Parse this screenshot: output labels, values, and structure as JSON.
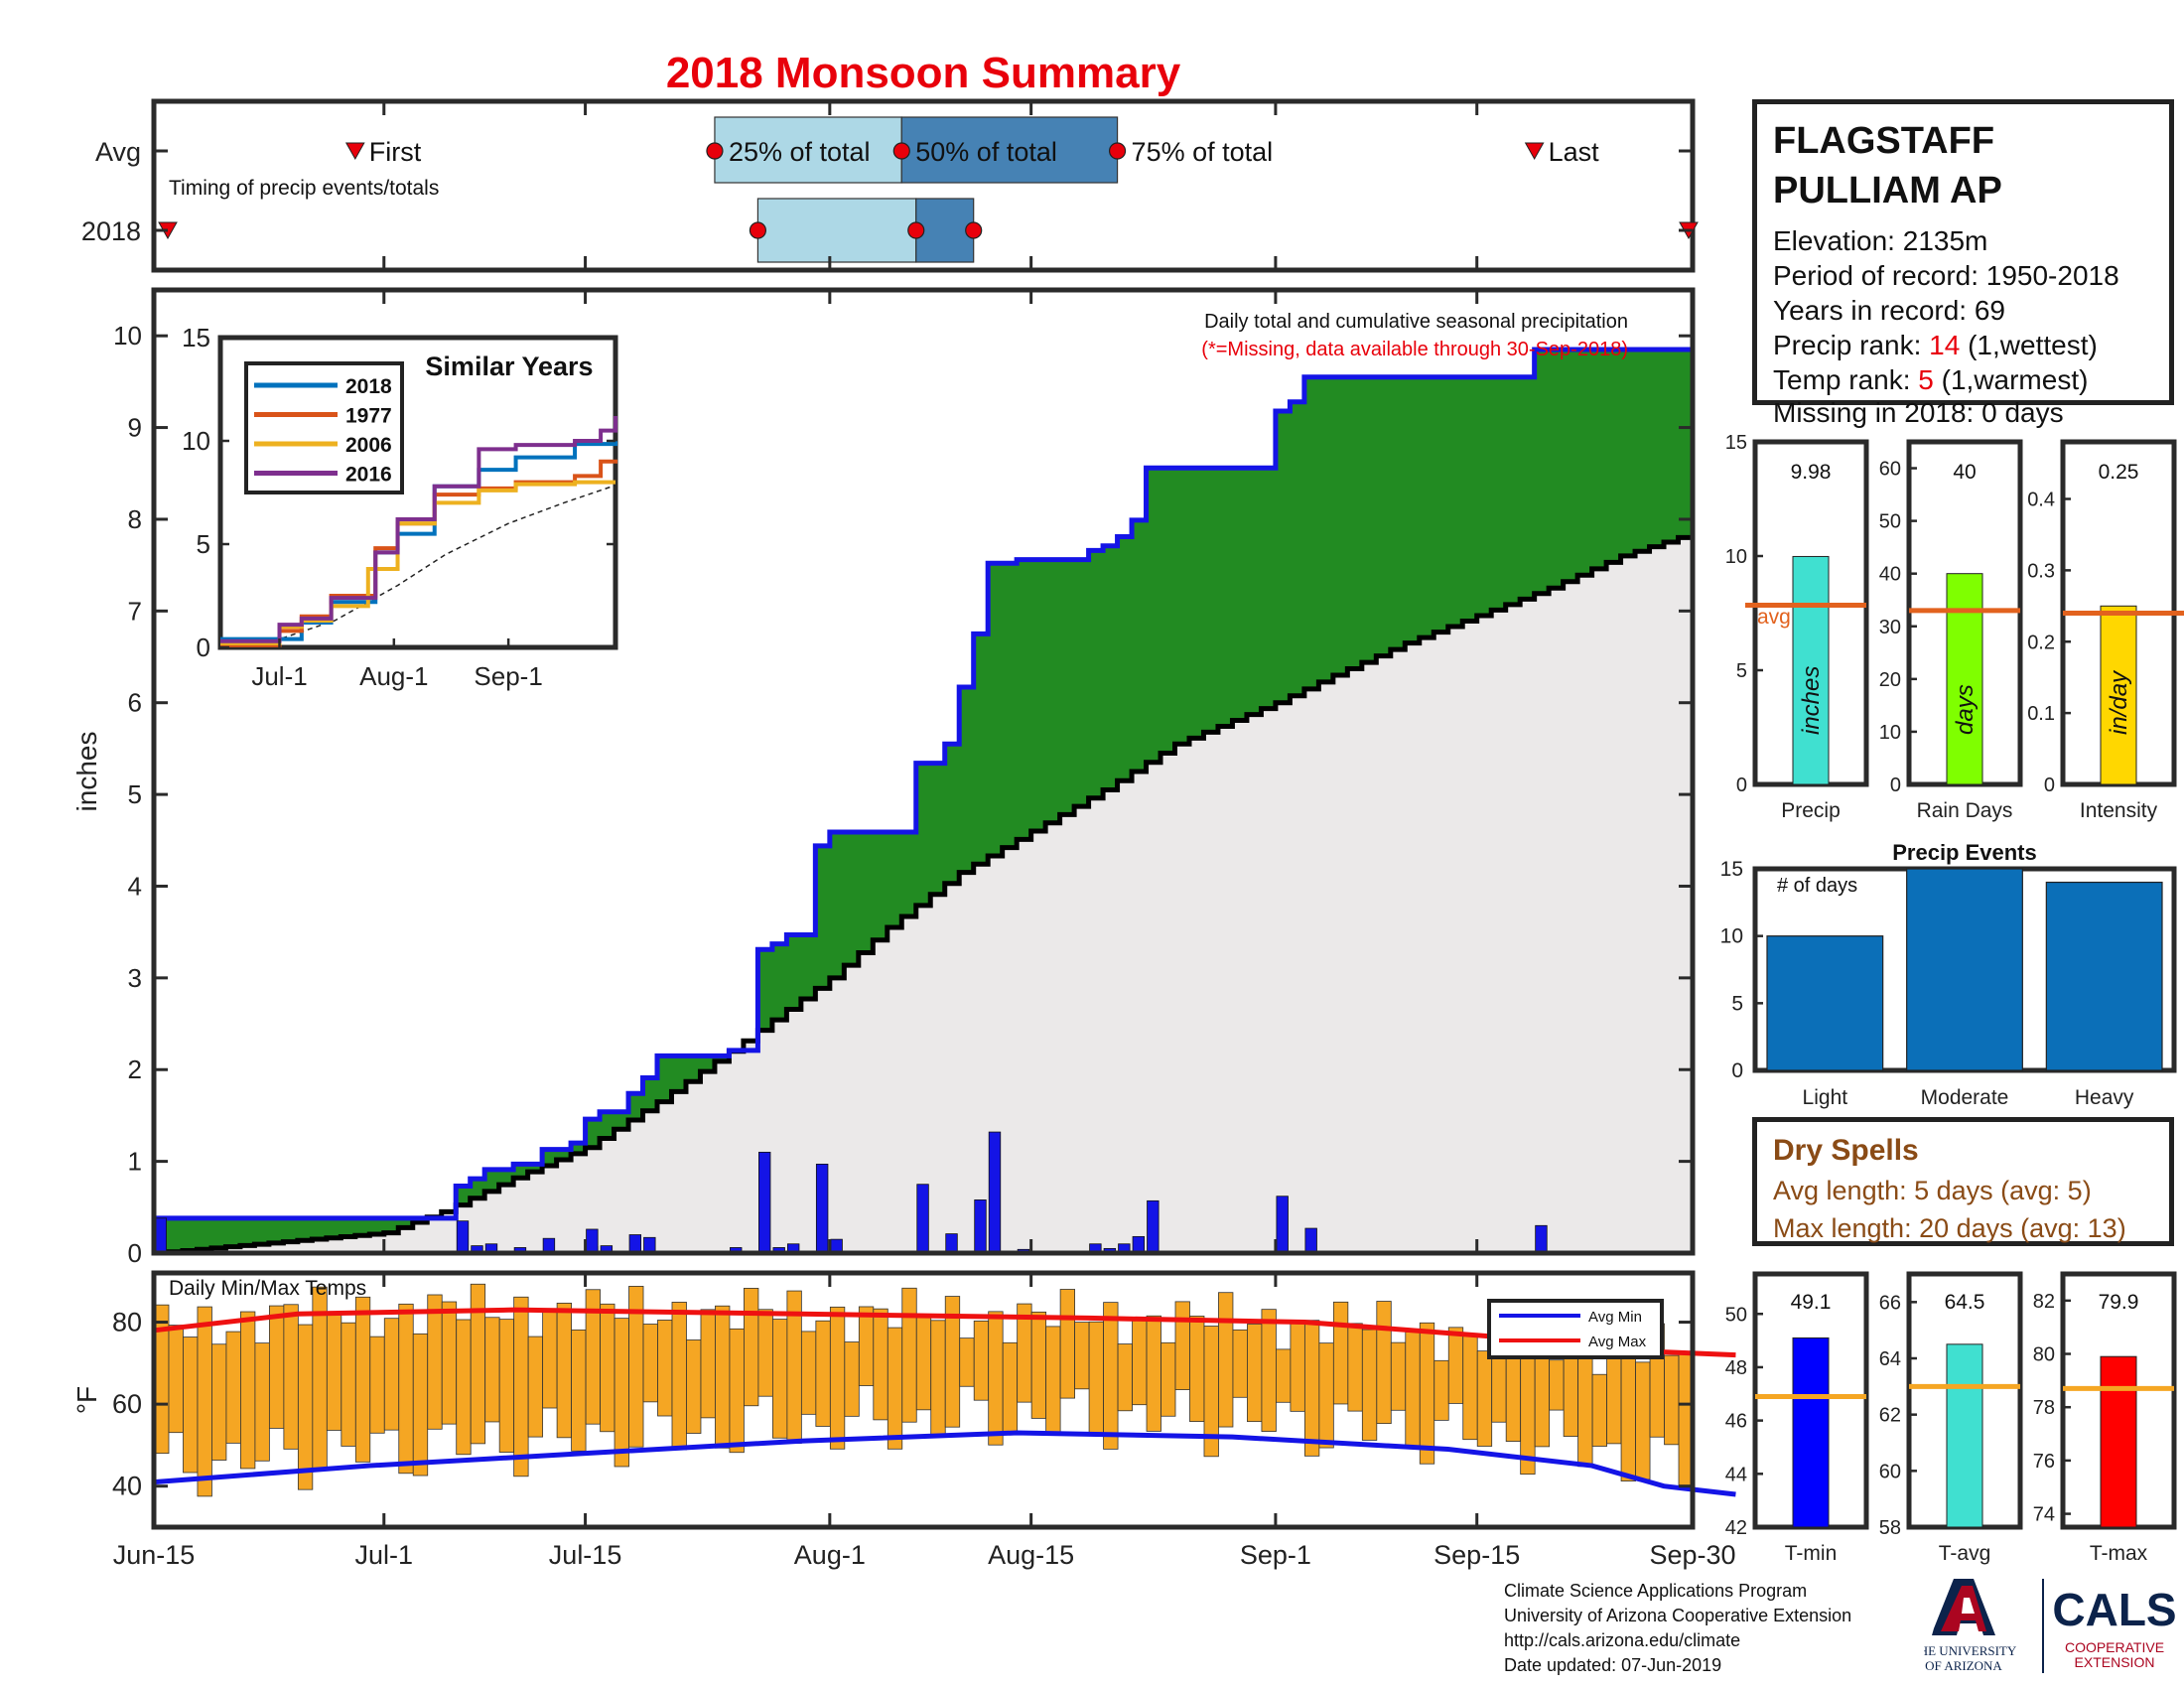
{
  "title": "2018 Monsoon Summary",
  "colors": {
    "title": "#e8000b",
    "cumulative_observed_fill": "#228b22",
    "cumulative_observed_line": "#1414e6",
    "cumulative_avg_fill": "#ebe9e9",
    "cumulative_avg_line": "#000000",
    "daily_bars": "#1414e6",
    "temp_bars": "#f5a623",
    "avg_min_line": "#1414e6",
    "avg_max_line": "#ee1111",
    "avg_marker": "#e2621e",
    "precip_bar": "#40e0d0",
    "raindays_bar": "#7fff00",
    "intensity_bar": "#ffd700",
    "events_bars": "#0b6fb8",
    "tmin_bar": "#0000ff",
    "tavg_bar": "#40e0d0",
    "tmax_bar": "#ff0000",
    "temp_avg_line": "#f5a623",
    "timing_light": "#add8e6",
    "timing_dark": "#4682b4",
    "dry_spell_text": "#8a4b16"
  },
  "station": {
    "name_line1": "FLAGSTAFF",
    "name_line2": "PULLIAM AP",
    "elevation": "Elevation: 2135m",
    "period": "Period of record: 1950-2018",
    "years": "Years in record: 69",
    "precip_rank_label": "Precip rank: ",
    "precip_rank_value": "14",
    "precip_rank_note": " (1,wettest)",
    "temp_rank_label": "Temp rank: ",
    "temp_rank_value": "5",
    "temp_rank_note": " (1,warmest)",
    "missing": "Missing in 2018: 0 days"
  },
  "dry_spells": {
    "title": "Dry Spells",
    "avg_length": "Avg length: 5 days (avg: 5)",
    "max_length": "Max length: 20 days (avg: 13)"
  },
  "credits": {
    "line1": "Climate Science Applications Program",
    "line2": "University of Arizona Cooperative Extension",
    "line3": "http://cals.arizona.edu/climate",
    "line4": " Date updated: 07-Jun-2019"
  },
  "logos": {
    "ua_text_1": "THE UNIVERSITY",
    "ua_text_2": "OF ARIZONA",
    "cals": "CALS",
    "cals_sub_1": "COOPERATIVE",
    "cals_sub_2": "EXTENSION"
  },
  "chart_data": [
    {
      "id": "timing",
      "type": "bar",
      "label": "Timing of precip events/totals",
      "rows": [
        "Avg",
        "2018"
      ],
      "avg": {
        "first": "Jun-29",
        "p25": "Jul-24",
        "p50": "Aug-6",
        "p75": "Aug-21",
        "last": "Sep-19"
      },
      "y2018": {
        "first": "Jun-15",
        "p25": "Jul-27",
        "p50": "Aug-7",
        "p75": "Aug-11",
        "last": "Sep-30"
      },
      "annotations": [
        "First",
        "25% of total",
        "50% of total",
        "75% of total",
        "Last"
      ]
    },
    {
      "id": "precip",
      "type": "area",
      "ylabel": "inches",
      "ylim": [
        0,
        10.5
      ],
      "yticks": [
        0,
        1,
        2,
        3,
        4,
        5,
        6,
        7,
        8,
        9,
        10
      ],
      "xlim": [
        "Jun-15",
        "Sep-30"
      ],
      "xticks": [
        "Jun-15",
        "Jul-1",
        "Jul-15",
        "Aug-1",
        "Aug-15",
        "Sep-1",
        "Sep-15",
        "Sep-30"
      ],
      "annotation": "Daily total and cumulative seasonal precipitation",
      "annotation_missing": "(*=Missing, data available through 30-Sep-2018)",
      "daily": [
        {
          "date": "Jun-15",
          "value": 0.38
        },
        {
          "date": "Jul-6",
          "value": 0.35
        },
        {
          "date": "Jul-7",
          "value": 0.08
        },
        {
          "date": "Jul-8",
          "value": 0.1
        },
        {
          "date": "Jul-10",
          "value": 0.06
        },
        {
          "date": "Jul-12",
          "value": 0.16
        },
        {
          "date": "Jul-15",
          "value": 0.07
        },
        {
          "date": "Jul-15",
          "value": 0.26
        },
        {
          "date": "Jul-16",
          "value": 0.08
        },
        {
          "date": "Jul-18",
          "value": 0.2
        },
        {
          "date": "Jul-19",
          "value": 0.17
        },
        {
          "date": "Jul-25",
          "value": 0.06
        },
        {
          "date": "Jul-27",
          "value": 1.1
        },
        {
          "date": "Jul-28",
          "value": 0.06
        },
        {
          "date": "Jul-29",
          "value": 0.1
        },
        {
          "date": "Jul-31",
          "value": 0.97
        },
        {
          "date": "Aug-1",
          "value": 0.15
        },
        {
          "date": "Aug-7",
          "value": 0.75
        },
        {
          "date": "Aug-9",
          "value": 0.21
        },
        {
          "date": "Aug-11",
          "value": 0.58
        },
        {
          "date": "Aug-12",
          "value": 1.32
        },
        {
          "date": "Aug-14",
          "value": 0.04
        },
        {
          "date": "Aug-19",
          "value": 0.1
        },
        {
          "date": "Aug-20",
          "value": 0.05
        },
        {
          "date": "Aug-21",
          "value": 0.1
        },
        {
          "date": "Aug-22",
          "value": 0.18
        },
        {
          "date": "Aug-23",
          "value": 0.57
        },
        {
          "date": "Sep-1",
          "value": 0.62
        },
        {
          "date": "Sep-3",
          "value": 0.27
        },
        {
          "date": "Sep-19",
          "value": 0.3
        }
      ],
      "cumulative_2018": [
        {
          "date": "Jun-15",
          "value": 0.38
        },
        {
          "date": "Jul-6",
          "value": 0.73
        },
        {
          "date": "Jul-7",
          "value": 0.81
        },
        {
          "date": "Jul-8",
          "value": 0.91
        },
        {
          "date": "Jul-10",
          "value": 0.97
        },
        {
          "date": "Jul-12",
          "value": 1.13
        },
        {
          "date": "Jul-14",
          "value": 1.2
        },
        {
          "date": "Jul-15",
          "value": 1.46
        },
        {
          "date": "Jul-16",
          "value": 1.54
        },
        {
          "date": "Jul-18",
          "value": 1.74
        },
        {
          "date": "Jul-19",
          "value": 1.91
        },
        {
          "date": "Jul-20",
          "value": 2.15
        },
        {
          "date": "Jul-25",
          "value": 2.21
        },
        {
          "date": "Jul-27",
          "value": 3.31
        },
        {
          "date": "Jul-28",
          "value": 3.37
        },
        {
          "date": "Jul-29",
          "value": 3.47
        },
        {
          "date": "Jul-31",
          "value": 4.44
        },
        {
          "date": "Aug-1",
          "value": 4.59
        },
        {
          "date": "Aug-7",
          "value": 5.34
        },
        {
          "date": "Aug-9",
          "value": 5.55
        },
        {
          "date": "Aug-10",
          "value": 6.17
        },
        {
          "date": "Aug-11",
          "value": 6.75
        },
        {
          "date": "Aug-12",
          "value": 7.52
        },
        {
          "date": "Aug-14",
          "value": 7.56
        },
        {
          "date": "Aug-19",
          "value": 7.66
        },
        {
          "date": "Aug-20",
          "value": 7.71
        },
        {
          "date": "Aug-21",
          "value": 7.81
        },
        {
          "date": "Aug-22",
          "value": 7.99
        },
        {
          "date": "Aug-23",
          "value": 8.56
        },
        {
          "date": "Sep-1",
          "value": 9.18
        },
        {
          "date": "Sep-2",
          "value": 9.28
        },
        {
          "date": "Sep-3",
          "value": 9.55
        },
        {
          "date": "Sep-19",
          "value": 9.85
        },
        {
          "date": "Sep-30",
          "value": 9.98
        }
      ],
      "cumulative_avg": [
        {
          "date": "Jun-15",
          "value": 0.0
        },
        {
          "date": "Jul-1",
          "value": 0.22
        },
        {
          "date": "Jul-5",
          "value": 0.45
        },
        {
          "date": "Jul-10",
          "value": 0.82
        },
        {
          "date": "Jul-15",
          "value": 1.15
        },
        {
          "date": "Jul-20",
          "value": 1.65
        },
        {
          "date": "Jul-25",
          "value": 2.2
        },
        {
          "date": "Aug-1",
          "value": 3.0
        },
        {
          "date": "Aug-5",
          "value": 3.55
        },
        {
          "date": "Aug-10",
          "value": 4.15
        },
        {
          "date": "Aug-15",
          "value": 4.6
        },
        {
          "date": "Aug-20",
          "value": 5.05
        },
        {
          "date": "Aug-25",
          "value": 5.55
        },
        {
          "date": "Sep-1",
          "value": 6.0
        },
        {
          "date": "Sep-5",
          "value": 6.3
        },
        {
          "date": "Sep-10",
          "value": 6.65
        },
        {
          "date": "Sep-15",
          "value": 6.95
        },
        {
          "date": "Sep-20",
          "value": 7.25
        },
        {
          "date": "Sep-25",
          "value": 7.6
        },
        {
          "date": "Sep-30",
          "value": 7.85
        }
      ]
    },
    {
      "id": "similar_years",
      "type": "line",
      "title": "Similar Years",
      "ylim": [
        0,
        15
      ],
      "yticks": [
        0,
        5,
        10,
        15
      ],
      "xticks": [
        "Jul-1",
        "Aug-1",
        "Sep-1"
      ],
      "series": [
        {
          "name": "2018",
          "color": "#0072bd",
          "values": [
            [
              0,
              0.4
            ],
            [
              16,
              0.4
            ],
            [
              22,
              1.2
            ],
            [
              30,
              2.2
            ],
            [
              42,
              4.6
            ],
            [
              48,
              5.5
            ],
            [
              58,
              7.8
            ],
            [
              70,
              8.6
            ],
            [
              80,
              9.2
            ],
            [
              96,
              9.85
            ],
            [
              107,
              9.98
            ]
          ]
        },
        {
          "name": "1977",
          "color": "#d95319",
          "values": [
            [
              0,
              0.1
            ],
            [
              16,
              0.8
            ],
            [
              22,
              1.5
            ],
            [
              30,
              2.5
            ],
            [
              42,
              4.8
            ],
            [
              48,
              6.0
            ],
            [
              58,
              7.4
            ],
            [
              70,
              7.7
            ],
            [
              80,
              8.0
            ],
            [
              96,
              8.3
            ],
            [
              103,
              9.0
            ],
            [
              107,
              9.1
            ]
          ]
        },
        {
          "name": "2006",
          "color": "#edb120",
          "values": [
            [
              0,
              0.2
            ],
            [
              16,
              1.0
            ],
            [
              22,
              1.3
            ],
            [
              30,
              2.0
            ],
            [
              40,
              3.8
            ],
            [
              48,
              6.0
            ],
            [
              58,
              7.0
            ],
            [
              70,
              7.6
            ],
            [
              80,
              7.9
            ],
            [
              96,
              8.0
            ],
            [
              107,
              8.0
            ]
          ]
        },
        {
          "name": "2016",
          "color": "#7e2f8e",
          "values": [
            [
              0,
              0.3
            ],
            [
              16,
              1.1
            ],
            [
              22,
              1.4
            ],
            [
              30,
              2.4
            ],
            [
              42,
              4.6
            ],
            [
              48,
              6.2
            ],
            [
              58,
              7.8
            ],
            [
              70,
              9.6
            ],
            [
              80,
              9.8
            ],
            [
              96,
              10.0
            ],
            [
              103,
              10.5
            ],
            [
              107,
              11.2
            ]
          ]
        }
      ],
      "avg_line": [
        [
          0,
          0
        ],
        [
          16,
          0.4
        ],
        [
          31,
          1.3
        ],
        [
          48,
          3.0
        ],
        [
          61,
          4.5
        ],
        [
          78,
          6.0
        ],
        [
          93,
          7.0
        ],
        [
          107,
          7.85
        ]
      ]
    },
    {
      "id": "temps",
      "type": "bar",
      "label": "Daily Min/Max Temps",
      "ylabel": "°F",
      "ylim": [
        30,
        92
      ],
      "yticks": [
        40,
        60,
        80
      ],
      "legend": [
        "Avg Min",
        "Avg Max"
      ],
      "avg_min": [
        [
          0,
          41
        ],
        [
          15,
          45
        ],
        [
          30,
          48
        ],
        [
          45,
          51
        ],
        [
          60,
          53
        ],
        [
          75,
          52
        ],
        [
          90,
          49
        ],
        [
          100,
          45
        ],
        [
          105,
          40
        ],
        [
          110,
          38
        ]
      ],
      "avg_max": [
        [
          0,
          78
        ],
        [
          10,
          82
        ],
        [
          25,
          83
        ],
        [
          45,
          82
        ],
        [
          65,
          81
        ],
        [
          80,
          80
        ],
        [
          95,
          76
        ],
        [
          103,
          73
        ],
        [
          110,
          72
        ]
      ]
    },
    {
      "id": "precip_totals",
      "type": "bar",
      "categories": [
        "Precip",
        "Rain Days",
        "Intensity"
      ],
      "values": [
        9.98,
        40,
        0.25
      ],
      "value_labels": [
        "9.98",
        "40",
        "0.25"
      ],
      "averages": [
        7.85,
        33,
        0.24
      ],
      "ylims": [
        [
          0,
          15
        ],
        [
          0,
          65
        ],
        [
          0,
          0.48
        ]
      ],
      "yticks": [
        [
          0,
          5,
          10,
          15
        ],
        [
          0,
          10,
          20,
          30,
          40,
          50,
          60
        ],
        [
          0,
          0.1,
          0.2,
          0.3,
          0.4
        ]
      ],
      "inner_labels": [
        "inches",
        "days",
        "in/day"
      ],
      "avg_label": "avg"
    },
    {
      "id": "precip_events",
      "type": "bar",
      "title": "Precip Events",
      "ylabel": "# of days",
      "categories": [
        "Light",
        "Moderate",
        "Heavy"
      ],
      "values": [
        10,
        15,
        14
      ],
      "ylim": [
        0,
        15
      ],
      "yticks": [
        0,
        5,
        10,
        15
      ]
    },
    {
      "id": "temp_means",
      "type": "bar",
      "categories": [
        "T-min",
        "T-avg",
        "T-max"
      ],
      "values": [
        49.1,
        64.5,
        79.9
      ],
      "value_labels": [
        "49.1",
        "64.5",
        "79.9"
      ],
      "averages": [
        46.9,
        63.0,
        78.7
      ],
      "ylims": [
        [
          42,
          51.5
        ],
        [
          58,
          67
        ],
        [
          73.5,
          83
        ]
      ],
      "yticks": [
        [
          42,
          44,
          46,
          48,
          50
        ],
        [
          58,
          60,
          62,
          64,
          66
        ],
        [
          74,
          76,
          78,
          80,
          82
        ]
      ]
    }
  ]
}
